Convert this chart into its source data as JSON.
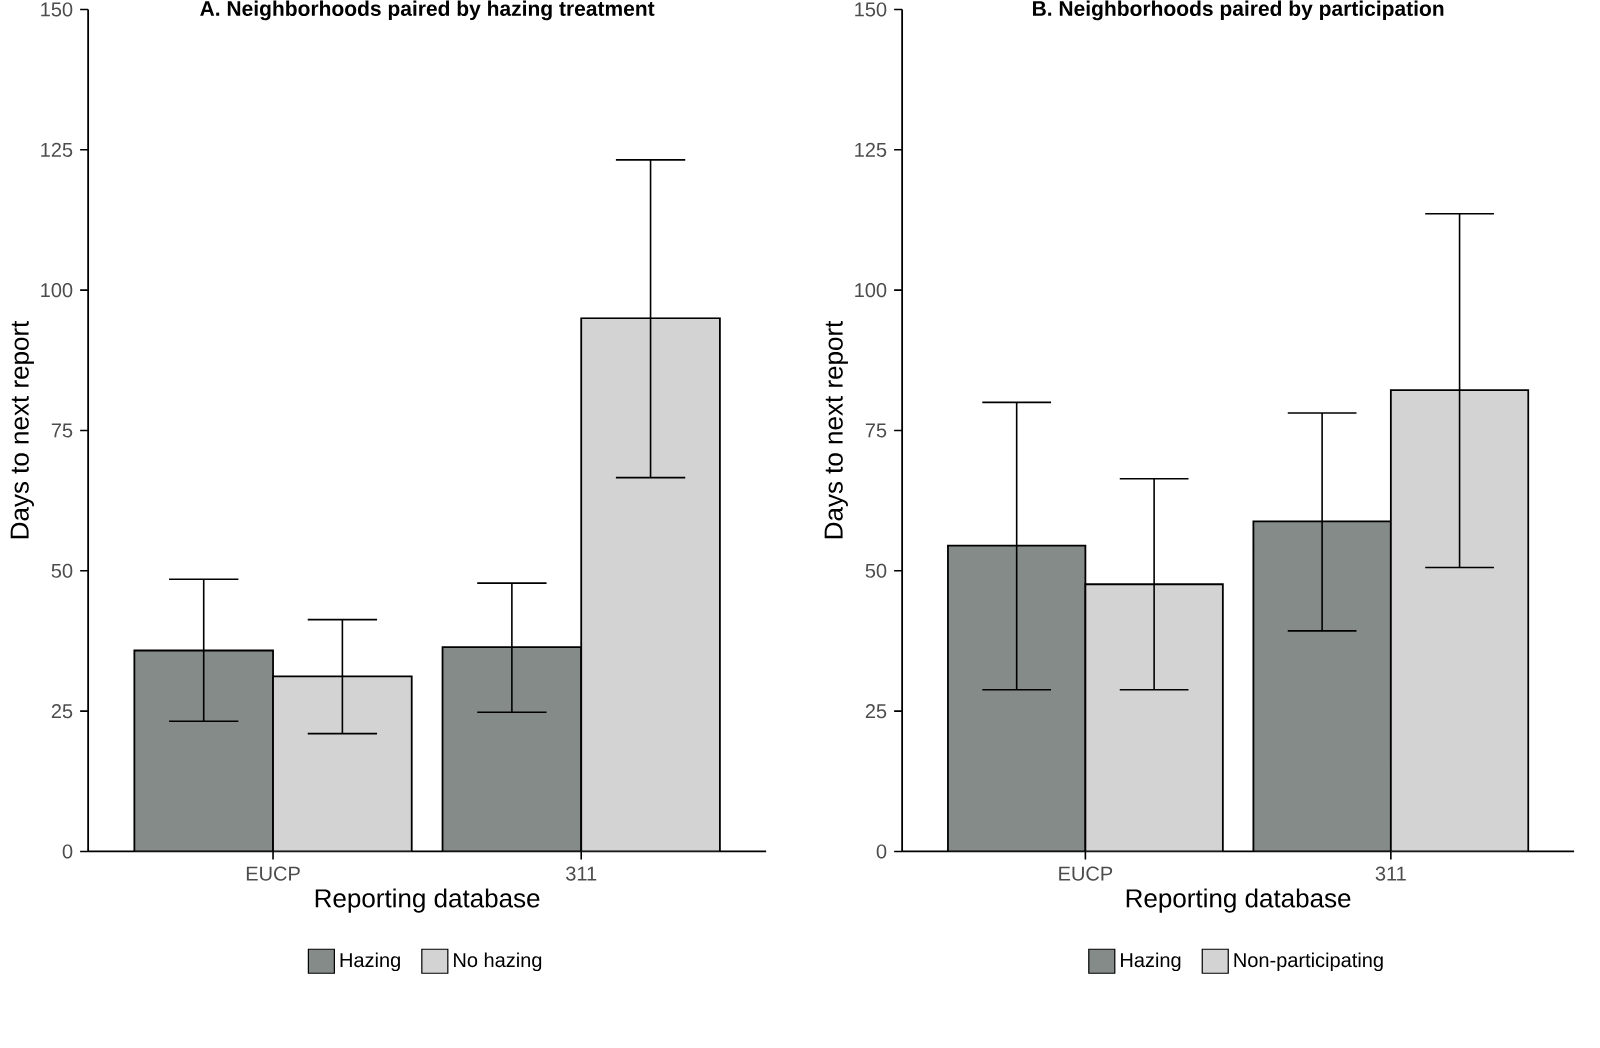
{
  "chart_data": [
    {
      "type": "bar",
      "title": "A. Neighborhoods paired by hazing treatment",
      "xlabel": "Reporting database",
      "ylabel": "Days to next report",
      "categories": [
        "EUCP",
        "311"
      ],
      "ylim": [
        0,
        150
      ],
      "yticks": [
        0,
        25,
        50,
        75,
        100,
        125,
        150
      ],
      "legend": "bottom",
      "grid": false,
      "series": [
        {
          "name": "Hazing",
          "color": "#848b89",
          "values": [
            35.8,
            36.4
          ],
          "errors": [
            [
              23.2,
              48.5
            ],
            [
              24.8,
              47.8
            ]
          ]
        },
        {
          "name": "No hazing",
          "color": "#d3d3d3",
          "values": [
            31.2,
            95
          ],
          "errors": [
            [
              21,
              41.3
            ],
            [
              66.6,
              123.2
            ]
          ]
        }
      ]
    },
    {
      "type": "bar",
      "title": "B. Neighborhoods paired by participation",
      "xlabel": "Reporting database",
      "ylabel": "Days to next report",
      "categories": [
        "EUCP",
        "311"
      ],
      "ylim": [
        0,
        150
      ],
      "yticks": [
        0,
        25,
        50,
        75,
        100,
        125,
        150
      ],
      "legend": "bottom",
      "grid": false,
      "series": [
        {
          "name": "Hazing",
          "color": "#848b89",
          "values": [
            54.5,
            58.8
          ],
          "errors": [
            [
              28.8,
              80
            ],
            [
              39.3,
              78.1
            ]
          ]
        },
        {
          "name": "Non-participating",
          "color": "#d3d3d3",
          "values": [
            47.6,
            82.2
          ],
          "errors": [
            [
              28.8,
              66.4
            ],
            [
              50.6,
              113.6
            ]
          ]
        }
      ]
    }
  ]
}
